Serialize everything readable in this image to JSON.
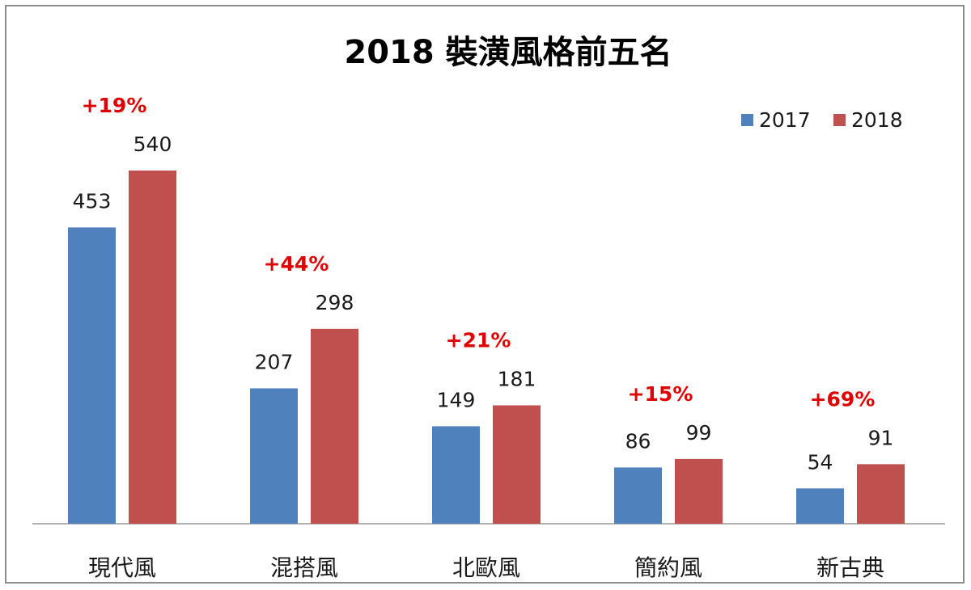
{
  "chart_data": {
    "type": "bar",
    "title": "2018 裝潢風格前五名",
    "categories": [
      "現代風",
      "混搭風",
      "北歐風",
      "簡約風",
      "新古典"
    ],
    "series": [
      {
        "name": "2017",
        "values": [
          453,
          207,
          149,
          86,
          54
        ],
        "color": "#4f81bd"
      },
      {
        "name": "2018",
        "values": [
          540,
          298,
          181,
          99,
          91
        ],
        "color": "#c0504d"
      }
    ],
    "annotations": [
      "+19%",
      "+44%",
      "+21%",
      "+15%",
      "+69%"
    ],
    "annotation_color": "#e00000",
    "legend_position": "top-right",
    "ylim": [
      0,
      540
    ],
    "grid": false,
    "xlabel": "",
    "ylabel": ""
  }
}
